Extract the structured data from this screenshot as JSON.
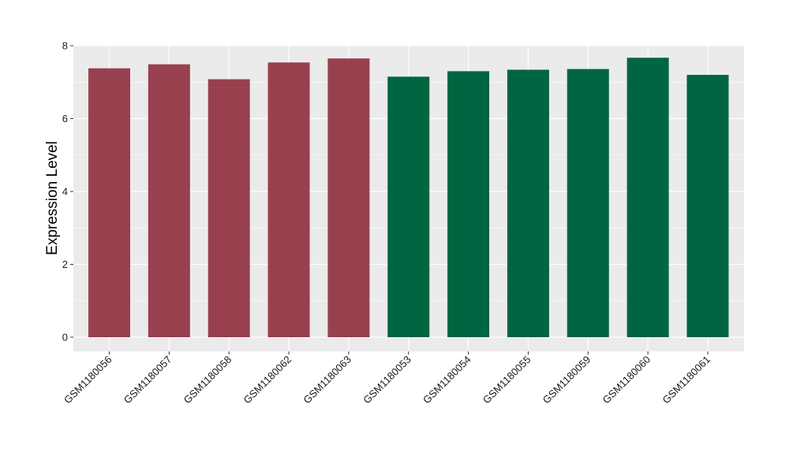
{
  "chart_data": {
    "type": "bar",
    "title": "",
    "xlabel": "",
    "ylabel": "Expression Level",
    "ylim": [
      0,
      8
    ],
    "yticks": [
      0,
      2,
      4,
      6,
      8
    ],
    "grid": true,
    "legend": "none",
    "categories": [
      "GSM1180056",
      "GSM1180057",
      "GSM1180058",
      "GSM1180062",
      "GSM1180063",
      "GSM1180053",
      "GSM1180054",
      "GSM1180055",
      "GSM1180059",
      "GSM1180060",
      "GSM1180061"
    ],
    "values": [
      7.38,
      7.49,
      7.08,
      7.54,
      7.65,
      7.15,
      7.3,
      7.34,
      7.36,
      7.67,
      7.2
    ],
    "group_colors": [
      "#99404f",
      "#99404f",
      "#99404f",
      "#99404f",
      "#99404f",
      "#006642",
      "#006642",
      "#006642",
      "#006642",
      "#006642",
      "#006642"
    ],
    "panel_background": "#ebebeb",
    "grid_color": "#ffffff"
  }
}
